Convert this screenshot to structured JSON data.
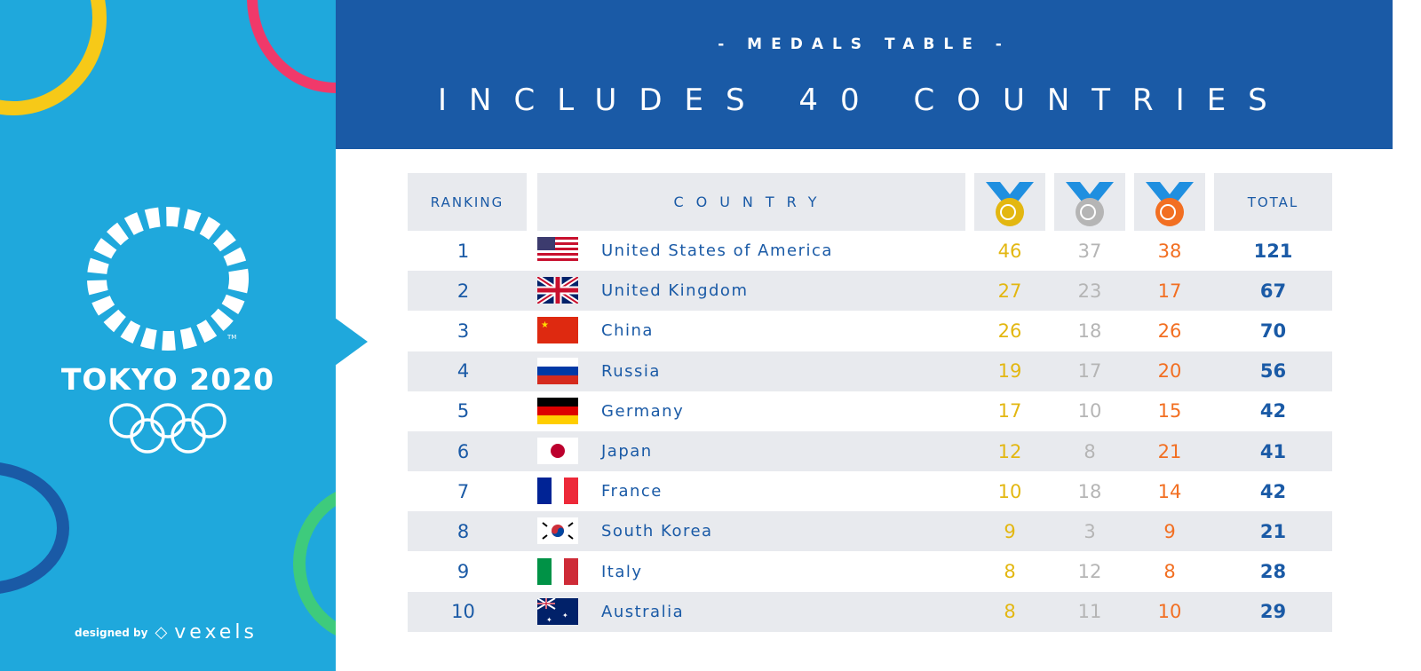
{
  "header": {
    "subtitle": "- MEDALS TABLE -",
    "title": "INCLUDES 40 COUNTRIES"
  },
  "branding": {
    "logo_text": "TOKYO 2020",
    "trademark": "TM",
    "credit": "designed by",
    "brand": "vexels"
  },
  "colors": {
    "panel": "#1fa8dc",
    "header": "#1a5aa6",
    "gold": "#e3b711",
    "silver": "#b5b5b5",
    "bronze": "#f26f22"
  },
  "table": {
    "columns": {
      "ranking": "RANKING",
      "country": "COUNTRY",
      "gold": "gold-medal-icon",
      "silver": "silver-medal-icon",
      "bronze": "bronze-medal-icon",
      "total": "TOTAL"
    },
    "rows": [
      {
        "rank": "1",
        "flag": "us",
        "country": "United States of America",
        "gold": "46",
        "silver": "37",
        "bronze": "38",
        "total": "121"
      },
      {
        "rank": "2",
        "flag": "gb",
        "country": "United Kingdom",
        "gold": "27",
        "silver": "23",
        "bronze": "17",
        "total": "67"
      },
      {
        "rank": "3",
        "flag": "cn",
        "country": "China",
        "gold": "26",
        "silver": "18",
        "bronze": "26",
        "total": "70"
      },
      {
        "rank": "4",
        "flag": "ru",
        "country": "Russia",
        "gold": "19",
        "silver": "17",
        "bronze": "20",
        "total": "56"
      },
      {
        "rank": "5",
        "flag": "de",
        "country": "Germany",
        "gold": "17",
        "silver": "10",
        "bronze": "15",
        "total": "42"
      },
      {
        "rank": "6",
        "flag": "jp",
        "country": "Japan",
        "gold": "12",
        "silver": "8",
        "bronze": "21",
        "total": "41"
      },
      {
        "rank": "7",
        "flag": "fr",
        "country": "France",
        "gold": "10",
        "silver": "18",
        "bronze": "14",
        "total": "42"
      },
      {
        "rank": "8",
        "flag": "kr",
        "country": "South Korea",
        "gold": "9",
        "silver": "3",
        "bronze": "9",
        "total": "21"
      },
      {
        "rank": "9",
        "flag": "it",
        "country": "Italy",
        "gold": "8",
        "silver": "12",
        "bronze": "8",
        "total": "28"
      },
      {
        "rank": "10",
        "flag": "au",
        "country": "Australia",
        "gold": "8",
        "silver": "11",
        "bronze": "10",
        "total": "29"
      }
    ]
  }
}
